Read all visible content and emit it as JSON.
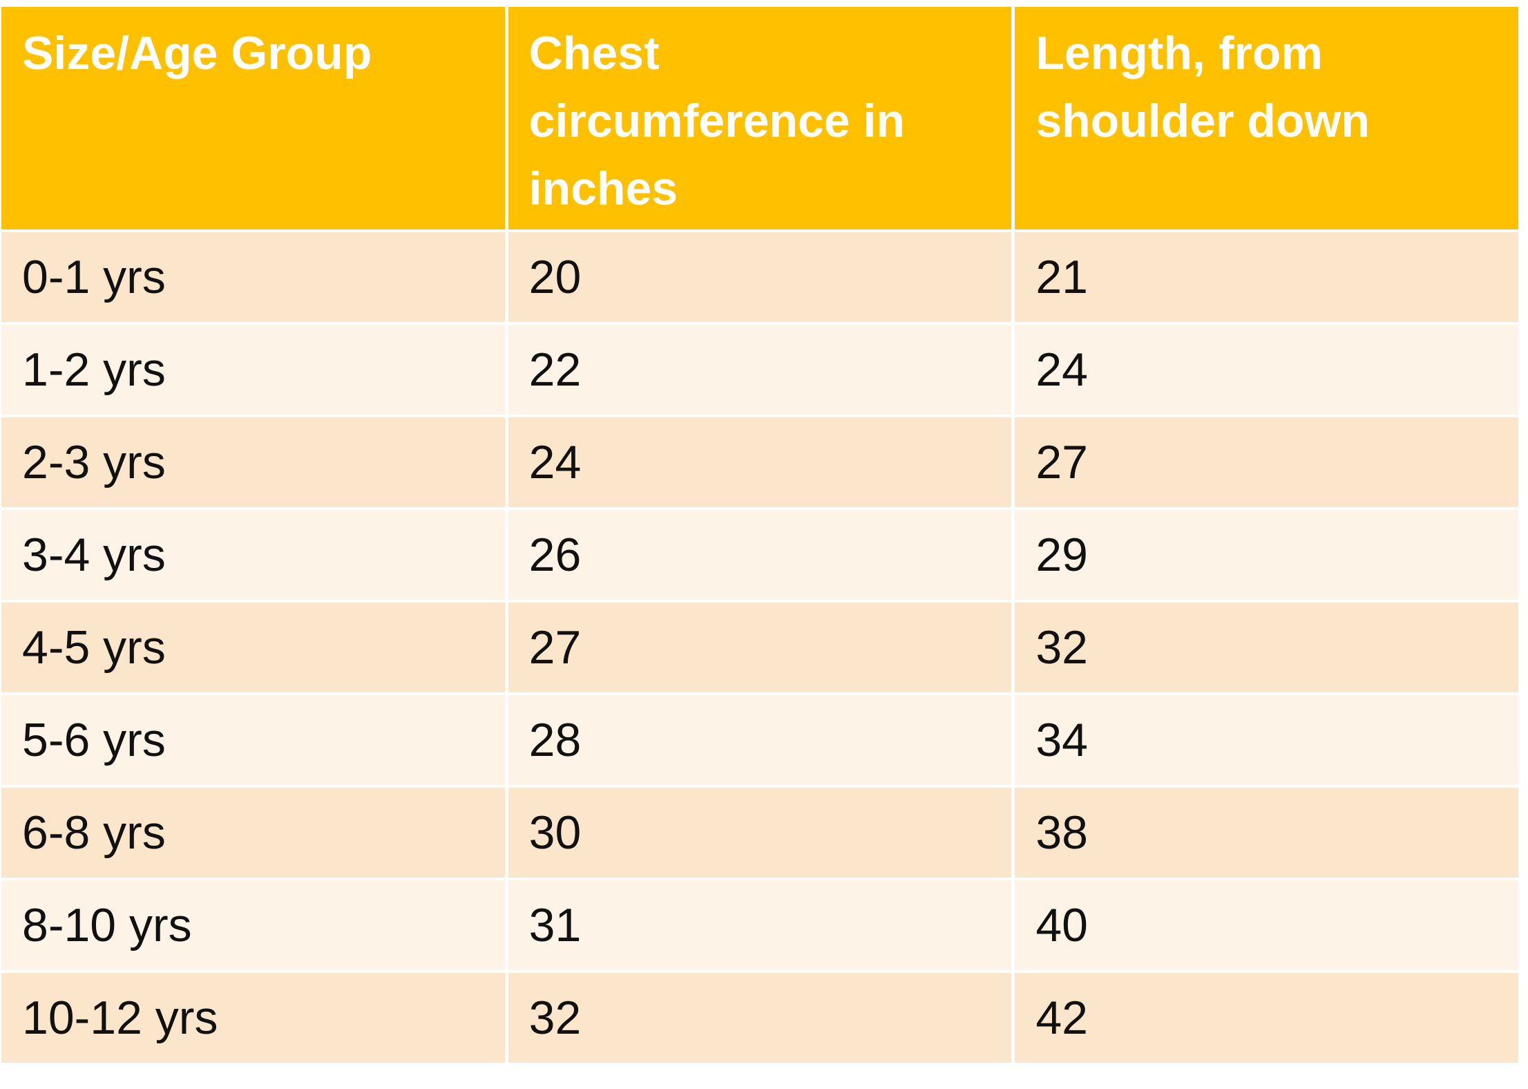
{
  "table": {
    "header": [
      "Size/Age Group",
      "Chest circumference in inches",
      "Length, from shoulder down"
    ],
    "rows": [
      [
        "0-1 yrs",
        "20",
        "21"
      ],
      [
        "1-2 yrs",
        "22",
        "24"
      ],
      [
        "2-3 yrs",
        "24",
        "27"
      ],
      [
        "3-4 yrs",
        "26",
        "29"
      ],
      [
        "4-5 yrs",
        "27",
        "32"
      ],
      [
        "5-6 yrs",
        "28",
        "34"
      ],
      [
        "6-8 yrs",
        "30",
        "38"
      ],
      [
        "8-10 yrs",
        "31",
        "40"
      ],
      [
        "10-12 yrs",
        "32",
        "42"
      ]
    ]
  }
}
